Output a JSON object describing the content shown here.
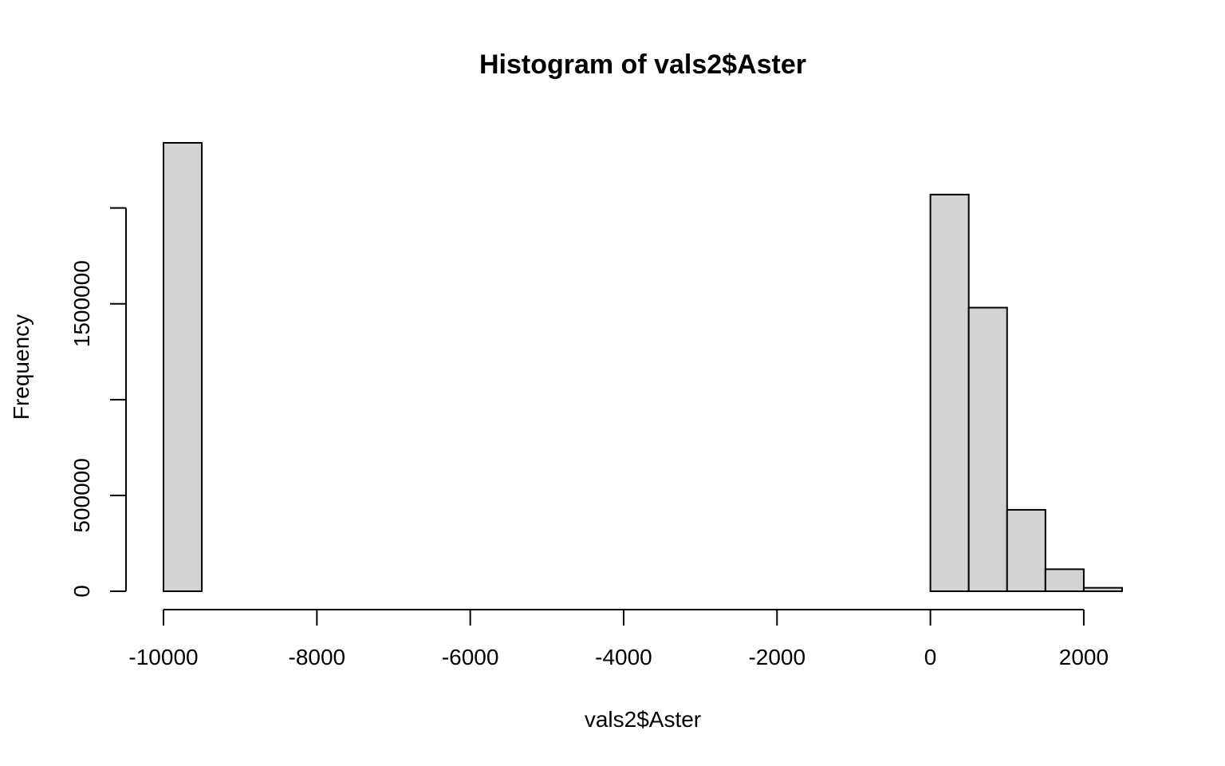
{
  "chart_data": {
    "type": "bar",
    "subtype": "histogram",
    "title": "Histogram of vals2$Aster",
    "xlabel": "vals2$Aster",
    "ylabel": "Frequency",
    "bar_color": "#d3d3d3",
    "border_color": "#000000",
    "xlim": [
      -10000,
      2500
    ],
    "ylim": [
      0,
      2340000
    ],
    "x_ticks": [
      -10000,
      -8000,
      -6000,
      -4000,
      -2000,
      0,
      2000
    ],
    "x_tick_labels": [
      "-10000",
      "-8000",
      "-6000",
      "-4000",
      "-2000",
      "0",
      "2000"
    ],
    "y_ticks": [
      0,
      500000,
      1000000,
      1500000,
      2000000
    ],
    "y_tick_labels": [
      "0",
      "500000",
      "",
      "1500000",
      ""
    ],
    "bins": [
      {
        "x0": -10000,
        "x1": -9500,
        "count": 2340000
      },
      {
        "x0": -9500,
        "x1": -9000,
        "count": 0
      },
      {
        "x0": -9000,
        "x1": -8500,
        "count": 0
      },
      {
        "x0": -8500,
        "x1": -8000,
        "count": 0
      },
      {
        "x0": -8000,
        "x1": -7500,
        "count": 0
      },
      {
        "x0": -7500,
        "x1": -7000,
        "count": 0
      },
      {
        "x0": -7000,
        "x1": -6500,
        "count": 0
      },
      {
        "x0": -6500,
        "x1": -6000,
        "count": 0
      },
      {
        "x0": -6000,
        "x1": -5500,
        "count": 0
      },
      {
        "x0": -5500,
        "x1": -5000,
        "count": 0
      },
      {
        "x0": -5000,
        "x1": -4500,
        "count": 0
      },
      {
        "x0": -4500,
        "x1": -4000,
        "count": 0
      },
      {
        "x0": -4000,
        "x1": -3500,
        "count": 0
      },
      {
        "x0": -3500,
        "x1": -3000,
        "count": 0
      },
      {
        "x0": -3000,
        "x1": -2500,
        "count": 0
      },
      {
        "x0": -2500,
        "x1": -2000,
        "count": 0
      },
      {
        "x0": -2000,
        "x1": -1500,
        "count": 0
      },
      {
        "x0": -1500,
        "x1": -1000,
        "count": 0
      },
      {
        "x0": -1000,
        "x1": -500,
        "count": 0
      },
      {
        "x0": -500,
        "x1": 0,
        "count": 0
      },
      {
        "x0": 0,
        "x1": 500,
        "count": 2070000
      },
      {
        "x0": 500,
        "x1": 1000,
        "count": 1480000
      },
      {
        "x0": 1000,
        "x1": 1500,
        "count": 425000
      },
      {
        "x0": 1500,
        "x1": 2000,
        "count": 115000
      },
      {
        "x0": 2000,
        "x1": 2500,
        "count": 18000
      }
    ]
  }
}
